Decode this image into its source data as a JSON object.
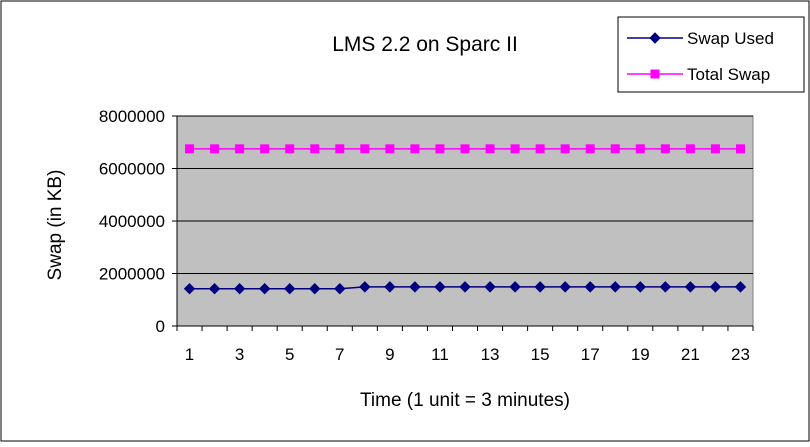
{
  "chart_data": {
    "type": "line",
    "title": "LMS 2.2 on Sparc II",
    "xlabel": "Time (1 unit = 3 minutes)",
    "ylabel": "Swap (in KB)",
    "x": [
      1,
      2,
      3,
      4,
      5,
      6,
      7,
      8,
      9,
      10,
      11,
      12,
      13,
      14,
      15,
      16,
      17,
      18,
      19,
      20,
      21,
      22,
      23
    ],
    "x_tick_labels": [
      "1",
      "3",
      "5",
      "7",
      "9",
      "11",
      "13",
      "15",
      "17",
      "19",
      "21",
      "23"
    ],
    "ylim": [
      0,
      8000000
    ],
    "y_ticks": [
      0,
      2000000,
      4000000,
      6000000,
      8000000
    ],
    "y_tick_labels": [
      "0",
      "2000000",
      "4000000",
      "6000000",
      "8000000"
    ],
    "grid": true,
    "legend_position": "top-right",
    "plot_background": "#c0c0c0",
    "series": [
      {
        "name": "Swap Used",
        "color": "#000080",
        "marker": "diamond",
        "values": [
          1420000,
          1420000,
          1420000,
          1420000,
          1420000,
          1420000,
          1420000,
          1490000,
          1490000,
          1490000,
          1490000,
          1490000,
          1490000,
          1490000,
          1490000,
          1490000,
          1490000,
          1490000,
          1490000,
          1490000,
          1490000,
          1490000,
          1490000
        ]
      },
      {
        "name": "Total Swap",
        "color": "#ff00ff",
        "marker": "square",
        "values": [
          6750000,
          6750000,
          6750000,
          6750000,
          6750000,
          6750000,
          6750000,
          6750000,
          6750000,
          6750000,
          6750000,
          6750000,
          6750000,
          6750000,
          6750000,
          6750000,
          6750000,
          6750000,
          6750000,
          6750000,
          6750000,
          6750000,
          6750000
        ]
      }
    ]
  }
}
